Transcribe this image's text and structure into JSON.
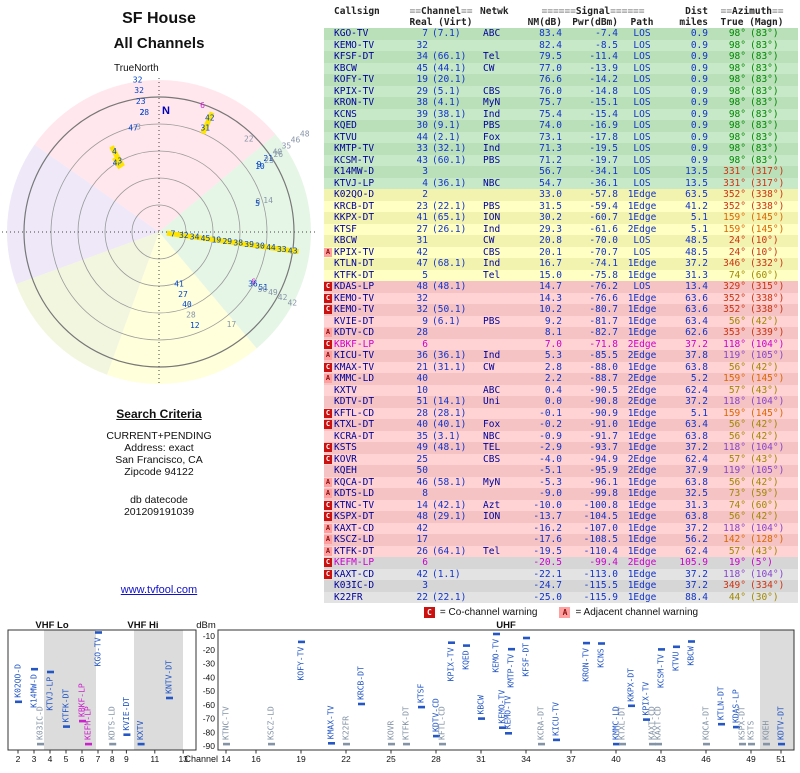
{
  "header": {
    "title_line1": "SF House",
    "title_line2": "All Channels",
    "true_north_label": "TrueNorth"
  },
  "search_criteria": {
    "heading": "Search Criteria",
    "lines": [
      "CURRENT+PENDING",
      "Address: exact",
      "San Francisco, CA",
      "Zipcode 94122"
    ],
    "datecode_label": "db datecode",
    "datecode_value": "201209191039"
  },
  "site_link": "www.tvfool.com",
  "table_header": {
    "callsign": "Callsign",
    "channel": "≡≡Channel≡≡",
    "netwk": "Netwk",
    "signal": "≡≡≡≡≡≡Signal≡≡≡≡≡≡",
    "dist": "Dist",
    "azimuth": "≡≡Azimuth≡≡",
    "real_virt": "Real (Virt)",
    "nm": "NM(dB)",
    "pwr": "Pwr(dBm)",
    "path": "Path",
    "miles": "miles",
    "true_magn": "True (Magn)"
  },
  "legend": {
    "c_symbol": "C",
    "c_text": "= Co-channel warning",
    "a_symbol": "A",
    "a_text": "= Adjacent channel warning"
  },
  "chart_data": {
    "type": "table",
    "title": "SF House - All Channels",
    "stations": [
      {
        "callsign": "KGO-TV",
        "ch": 7,
        "virt": "(7.1)",
        "net": "ABC",
        "nm": "83.4",
        "pwr": "-7.4",
        "path": "LOS",
        "mi": "0.9",
        "az": 98,
        "maz": 83,
        "band": "green"
      },
      {
        "callsign": "KEMO-TV",
        "ch": 32,
        "virt": "",
        "net": "",
        "nm": "82.4",
        "pwr": "-8.5",
        "path": "LOS",
        "mi": "0.9",
        "az": 98,
        "maz": 83,
        "band": "green"
      },
      {
        "callsign": "KFSF-DT",
        "ch": 34,
        "virt": "(66.1)",
        "net": "Tel",
        "nm": "79.5",
        "pwr": "-11.4",
        "path": "LOS",
        "mi": "0.9",
        "az": 98,
        "maz": 83,
        "band": "green"
      },
      {
        "callsign": "KBCW",
        "ch": 45,
        "virt": "(44.1)",
        "net": "CW",
        "nm": "77.0",
        "pwr": "-13.9",
        "path": "LOS",
        "mi": "0.9",
        "az": 98,
        "maz": 83,
        "band": "green"
      },
      {
        "callsign": "KOFY-TV",
        "ch": 19,
        "virt": "(20.1)",
        "net": "",
        "nm": "76.6",
        "pwr": "-14.2",
        "path": "LOS",
        "mi": "0.9",
        "az": 98,
        "maz": 83,
        "band": "green"
      },
      {
        "callsign": "KPIX-TV",
        "ch": 29,
        "virt": "(5.1)",
        "net": "CBS",
        "nm": "76.0",
        "pwr": "-14.8",
        "path": "LOS",
        "mi": "0.9",
        "az": 98,
        "maz": 83,
        "band": "green"
      },
      {
        "callsign": "KRON-TV",
        "ch": 38,
        "virt": "(4.1)",
        "net": "MyN",
        "nm": "75.7",
        "pwr": "-15.1",
        "path": "LOS",
        "mi": "0.9",
        "az": 98,
        "maz": 83,
        "band": "green"
      },
      {
        "callsign": "KCNS",
        "ch": 39,
        "virt": "(38.1)",
        "net": "Ind",
        "nm": "75.4",
        "pwr": "-15.4",
        "path": "LOS",
        "mi": "0.9",
        "az": 98,
        "maz": 83,
        "band": "green"
      },
      {
        "callsign": "KQED",
        "ch": 30,
        "virt": "(9.1)",
        "net": "PBS",
        "nm": "74.0",
        "pwr": "-16.9",
        "path": "LOS",
        "mi": "0.9",
        "az": 98,
        "maz": 83,
        "band": "green"
      },
      {
        "callsign": "KTVU",
        "ch": 44,
        "virt": "(2.1)",
        "net": "Fox",
        "nm": "73.1",
        "pwr": "-17.8",
        "path": "LOS",
        "mi": "0.9",
        "az": 98,
        "maz": 83,
        "band": "green"
      },
      {
        "callsign": "KMTP-TV",
        "ch": 33,
        "virt": "(32.1)",
        "net": "Ind",
        "nm": "71.3",
        "pwr": "-19.5",
        "path": "LOS",
        "mi": "0.9",
        "az": 98,
        "maz": 83,
        "band": "green"
      },
      {
        "callsign": "KCSM-TV",
        "ch": 43,
        "virt": "(60.1)",
        "net": "PBS",
        "nm": "71.2",
        "pwr": "-19.7",
        "path": "LOS",
        "mi": "0.9",
        "az": 98,
        "maz": 83,
        "band": "green"
      },
      {
        "callsign": "K14MW-D",
        "ch": 3,
        "virt": "",
        "net": "",
        "nm": "56.7",
        "pwr": "-34.1",
        "path": "LOS",
        "mi": "13.5",
        "az": 331,
        "maz": 317,
        "band": "green"
      },
      {
        "callsign": "KTVJ-LP",
        "ch": 4,
        "virt": "(36.1)",
        "net": "NBC",
        "nm": "54.7",
        "pwr": "-36.1",
        "path": "LOS",
        "mi": "13.5",
        "az": 331,
        "maz": 317,
        "band": "green"
      },
      {
        "callsign": "K02QO-D",
        "ch": 2,
        "virt": "",
        "net": "",
        "nm": "33.0",
        "pwr": "-57.8",
        "path": "1Edge",
        "mi": "63.5",
        "az": 352,
        "maz": 338,
        "band": "yellow"
      },
      {
        "callsign": "KRCB-DT",
        "ch": 23,
        "virt": "(22.1)",
        "net": "PBS",
        "nm": "31.5",
        "pwr": "-59.4",
        "path": "1Edge",
        "mi": "41.2",
        "az": 352,
        "maz": 338,
        "band": "yellow"
      },
      {
        "callsign": "KKPX-DT",
        "ch": 41,
        "virt": "(65.1)",
        "net": "ION",
        "nm": "30.2",
        "pwr": "-60.7",
        "path": "1Edge",
        "mi": "5.1",
        "az": 159,
        "maz": 145,
        "band": "yellow"
      },
      {
        "callsign": "KTSF",
        "ch": 27,
        "virt": "(26.1)",
        "net": "Ind",
        "nm": "29.3",
        "pwr": "-61.6",
        "path": "2Edge",
        "mi": "5.1",
        "az": 159,
        "maz": 145,
        "band": "yellow"
      },
      {
        "callsign": "KBCW",
        "ch": 31,
        "virt": "",
        "net": "CW",
        "nm": "20.8",
        "pwr": "-70.0",
        "path": "LOS",
        "mi": "48.5",
        "az": 24,
        "maz": 10,
        "band": "yellow"
      },
      {
        "callsign": "KPIX-TV",
        "ch": 42,
        "virt": "",
        "net": "CBS",
        "nm": "20.1",
        "pwr": "-70.7",
        "path": "LOS",
        "mi": "48.5",
        "az": 24,
        "maz": 10,
        "band": "yellow",
        "mk": "A"
      },
      {
        "callsign": "KTLN-DT",
        "ch": 47,
        "virt": "(68.1)",
        "net": "Ind",
        "nm": "16.7",
        "pwr": "-74.1",
        "path": "1Edge",
        "mi": "37.2",
        "az": 346,
        "maz": 332,
        "band": "yellow"
      },
      {
        "callsign": "KTFK-DT",
        "ch": 5,
        "virt": "",
        "net": "Tel",
        "nm": "15.0",
        "pwr": "-75.8",
        "path": "1Edge",
        "mi": "31.3",
        "az": 74,
        "maz": 60,
        "band": "yellow"
      },
      {
        "callsign": "KDAS-LP",
        "ch": 48,
        "virt": "(48.1)",
        "net": "",
        "nm": "14.7",
        "pwr": "-76.2",
        "path": "LOS",
        "mi": "13.4",
        "az": 329,
        "maz": 315,
        "band": "pink",
        "mk": "C"
      },
      {
        "callsign": "KEMO-TV",
        "ch": 32,
        "virt": "",
        "net": "",
        "nm": "14.3",
        "pwr": "-76.6",
        "path": "1Edge",
        "mi": "63.6",
        "az": 352,
        "maz": 338,
        "band": "pink",
        "mk": "C"
      },
      {
        "callsign": "KEMO-TV",
        "ch": 32,
        "virt": "(50.1)",
        "net": "",
        "nm": "10.2",
        "pwr": "-80.7",
        "path": "1Edge",
        "mi": "63.6",
        "az": 352,
        "maz": 338,
        "band": "pink",
        "mk": "C"
      },
      {
        "callsign": "KVIE-DT",
        "ch": 9,
        "virt": "(6.1)",
        "net": "PBS",
        "nm": "9.2",
        "pwr": "-81.7",
        "path": "1Edge",
        "mi": "63.4",
        "az": 56,
        "maz": 42,
        "band": "pink"
      },
      {
        "callsign": "KDTV-CD",
        "ch": 28,
        "virt": "",
        "net": "",
        "nm": "8.1",
        "pwr": "-82.7",
        "path": "1Edge",
        "mi": "62.6",
        "az": 353,
        "maz": 339,
        "band": "pink",
        "mk": "A"
      },
      {
        "callsign": "KBKF-LP",
        "ch": 6,
        "virt": "",
        "net": "",
        "nm": "7.0",
        "pwr": "-71.8",
        "path": "2Edge",
        "mi": "37.2",
        "az": 118,
        "maz": 104,
        "band": "pink",
        "mk": "C",
        "pd": true
      },
      {
        "callsign": "KICU-TV",
        "ch": 36,
        "virt": "(36.1)",
        "net": "Ind",
        "nm": "5.3",
        "pwr": "-85.5",
        "path": "2Edge",
        "mi": "37.8",
        "az": 119,
        "maz": 105,
        "band": "pink",
        "mk": "A"
      },
      {
        "callsign": "KMAX-TV",
        "ch": 21,
        "virt": "(31.1)",
        "net": "CW",
        "nm": "2.8",
        "pwr": "-88.0",
        "path": "1Edge",
        "mi": "63.8",
        "az": 56,
        "maz": 42,
        "band": "pink",
        "mk": "C"
      },
      {
        "callsign": "KMMC-LD",
        "ch": 40,
        "virt": "",
        "net": "",
        "nm": "2.2",
        "pwr": "-88.7",
        "path": "2Edge",
        "mi": "5.2",
        "az": 159,
        "maz": 145,
        "band": "pink",
        "mk": "A"
      },
      {
        "callsign": "KXTV",
        "ch": 10,
        "virt": "",
        "net": "ABC",
        "nm": "0.4",
        "pwr": "-90.5",
        "path": "2Edge",
        "mi": "62.4",
        "az": 57,
        "maz": 43,
        "band": "pink"
      },
      {
        "callsign": "KDTV-DT",
        "ch": 51,
        "virt": "(14.1)",
        "net": "Uni",
        "nm": "0.0",
        "pwr": "-90.8",
        "path": "2Edge",
        "mi": "37.2",
        "az": 118,
        "maz": 104,
        "band": "pink"
      },
      {
        "callsign": "KFTL-CD",
        "ch": 28,
        "virt": "(28.1)",
        "net": "",
        "nm": "-0.1",
        "pwr": "-90.9",
        "path": "1Edge",
        "mi": "5.1",
        "az": 159,
        "maz": 145,
        "band": "pink",
        "mk": "C"
      },
      {
        "callsign": "KTXL-DT",
        "ch": 40,
        "virt": "(40.1)",
        "net": "Fox",
        "nm": "-0.2",
        "pwr": "-91.0",
        "path": "1Edge",
        "mi": "63.4",
        "az": 56,
        "maz": 42,
        "band": "pink",
        "mk": "C"
      },
      {
        "callsign": "KCRA-DT",
        "ch": 35,
        "virt": "(3.1)",
        "net": "NBC",
        "nm": "-0.9",
        "pwr": "-91.7",
        "path": "1Edge",
        "mi": "63.8",
        "az": 56,
        "maz": 42,
        "band": "pink"
      },
      {
        "callsign": "KSTS",
        "ch": 49,
        "virt": "(48.1)",
        "net": "TEL",
        "nm": "-2.9",
        "pwr": "-93.7",
        "path": "1Edge",
        "mi": "37.2",
        "az": 118,
        "maz": 104,
        "band": "pink",
        "mk": "C"
      },
      {
        "callsign": "KOVR",
        "ch": 25,
        "virt": "",
        "net": "CBS",
        "nm": "-4.0",
        "pwr": "-94.9",
        "path": "2Edge",
        "mi": "62.4",
        "az": 57,
        "maz": 43,
        "band": "pink",
        "mk": "C"
      },
      {
        "callsign": "KQEH",
        "ch": 50,
        "virt": "",
        "net": "",
        "nm": "-5.1",
        "pwr": "-95.9",
        "path": "2Edge",
        "mi": "37.9",
        "az": 119,
        "maz": 105,
        "band": "pink"
      },
      {
        "callsign": "KQCA-DT",
        "ch": 46,
        "virt": "(58.1)",
        "net": "MyN",
        "nm": "-5.3",
        "pwr": "-96.1",
        "path": "1Edge",
        "mi": "63.8",
        "az": 56,
        "maz": 42,
        "band": "pink",
        "mk": "A"
      },
      {
        "callsign": "KDTS-LD",
        "ch": 8,
        "virt": "",
        "net": "",
        "nm": "-9.0",
        "pwr": "-99.8",
        "path": "1Edge",
        "mi": "32.5",
        "az": 73,
        "maz": 59,
        "band": "pink",
        "mk": "A"
      },
      {
        "callsign": "KTNC-TV",
        "ch": 14,
        "virt": "(42.1)",
        "net": "Azt",
        "nm": "-10.0",
        "pwr": "-100.8",
        "path": "1Edge",
        "mi": "31.3",
        "az": 74,
        "maz": 60,
        "band": "pink",
        "mk": "C"
      },
      {
        "callsign": "KSPX-DT",
        "ch": 48,
        "virt": "(29.1)",
        "net": "ION",
        "nm": "-13.7",
        "pwr": "-104.5",
        "path": "1Edge",
        "mi": "63.8",
        "az": 56,
        "maz": 42,
        "band": "pink",
        "mk": "C"
      },
      {
        "callsign": "KAXT-CD",
        "ch": 42,
        "virt": "",
        "net": "",
        "nm": "-16.2",
        "pwr": "-107.0",
        "path": "1Edge",
        "mi": "37.2",
        "az": 118,
        "maz": 104,
        "band": "pink",
        "mk": "A"
      },
      {
        "callsign": "KSCZ-LD",
        "ch": 17,
        "virt": "",
        "net": "",
        "nm": "-17.6",
        "pwr": "-108.5",
        "path": "1Edge",
        "mi": "56.2",
        "az": 142,
        "maz": 128,
        "band": "pink",
        "mk": "A"
      },
      {
        "callsign": "KTFK-DT",
        "ch": 26,
        "virt": "(64.1)",
        "net": "Tel",
        "nm": "-19.5",
        "pwr": "-110.4",
        "path": "1Edge",
        "mi": "62.4",
        "az": 57,
        "maz": 43,
        "band": "pink",
        "mk": "A"
      },
      {
        "callsign": "KEFM-LP",
        "ch": 6,
        "virt": "",
        "net": "",
        "nm": "-20.5",
        "pwr": "-99.4",
        "path": "2Edge",
        "mi": "105.9",
        "az": 19,
        "maz": 5,
        "band": "gray",
        "mk": "C",
        "pd": true
      },
      {
        "callsign": "KAXT-CD",
        "ch": 42,
        "virt": "(1.1)",
        "net": "",
        "nm": "-22.1",
        "pwr": "-113.0",
        "path": "1Edge",
        "mi": "37.2",
        "az": 118,
        "maz": 104,
        "band": "gray",
        "mk": "C"
      },
      {
        "callsign": "K03IC-D",
        "ch": 3,
        "virt": "",
        "net": "",
        "nm": "-24.7",
        "pwr": "-115.5",
        "path": "1Edge",
        "mi": "37.2",
        "az": 349,
        "maz": 334,
        "band": "gray"
      },
      {
        "callsign": "K22FR",
        "ch": 22,
        "virt": "(22.1)",
        "net": "",
        "nm": "-25.0",
        "pwr": "-115.9",
        "path": "1Edge",
        "mi": "88.4",
        "az": 44,
        "maz": 30,
        "band": "gray"
      }
    ],
    "extra_chart_stations": [
      {
        "callsign": "KNTV-DT",
        "channel": 12,
        "pwr_dbm": "-55.0",
        "azimuth": 159,
        "dist_miles": 5.1
      }
    ],
    "signal_plot": {
      "type": "scatter",
      "ylabel": "dBm",
      "xlabel": "Channel",
      "ylim": [
        -90,
        -10
      ],
      "yticks": [
        -10,
        -20,
        -30,
        -40,
        -50,
        -60,
        -70,
        -80,
        -90
      ],
      "band_labels": [
        "VHF Lo",
        "VHF Hi",
        "UHF"
      ],
      "left_xticks": [
        2,
        3,
        4,
        5,
        6,
        7,
        8,
        9,
        11,
        13
      ],
      "right_xticks": [
        14,
        16,
        19,
        22,
        25,
        28,
        31,
        34,
        37,
        40,
        43,
        46,
        49,
        51
      ]
    },
    "polar_plot": {
      "north_label": "N",
      "rings": 5
    }
  }
}
